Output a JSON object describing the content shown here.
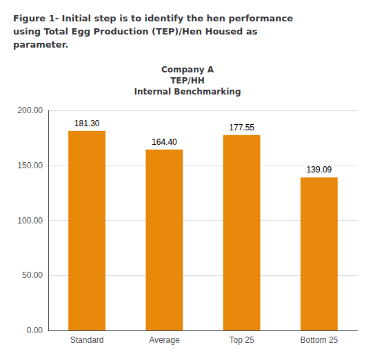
{
  "chart_data": {
    "type": "bar",
    "title": "Company A\nTEP/HH\nInternal Benchmarking",
    "annotations": [
      "Figure 1- Initial step is to identify the hen performance\nusing Total Egg Production (TEP)/Hen Housed as\nparameter."
    ],
    "categories": [
      "Standard",
      "Average",
      "Top 25",
      "Bottom 25"
    ],
    "values": [
      181.3,
      164.4,
      177.55,
      139.09
    ],
    "value_labels": [
      "181.30",
      "164.40",
      "177.55",
      "139.09"
    ],
    "data_labels": true,
    "color": "#E8890C",
    "ylim": [
      0,
      200
    ],
    "yticks": [
      {
        "value": 0,
        "label": "0.00"
      },
      {
        "value": 50,
        "label": "50.00"
      },
      {
        "value": 100,
        "label": "100.00"
      },
      {
        "value": 150,
        "label": "150.00"
      },
      {
        "value": 200,
        "label": "200.00"
      }
    ],
    "grid": true
  }
}
